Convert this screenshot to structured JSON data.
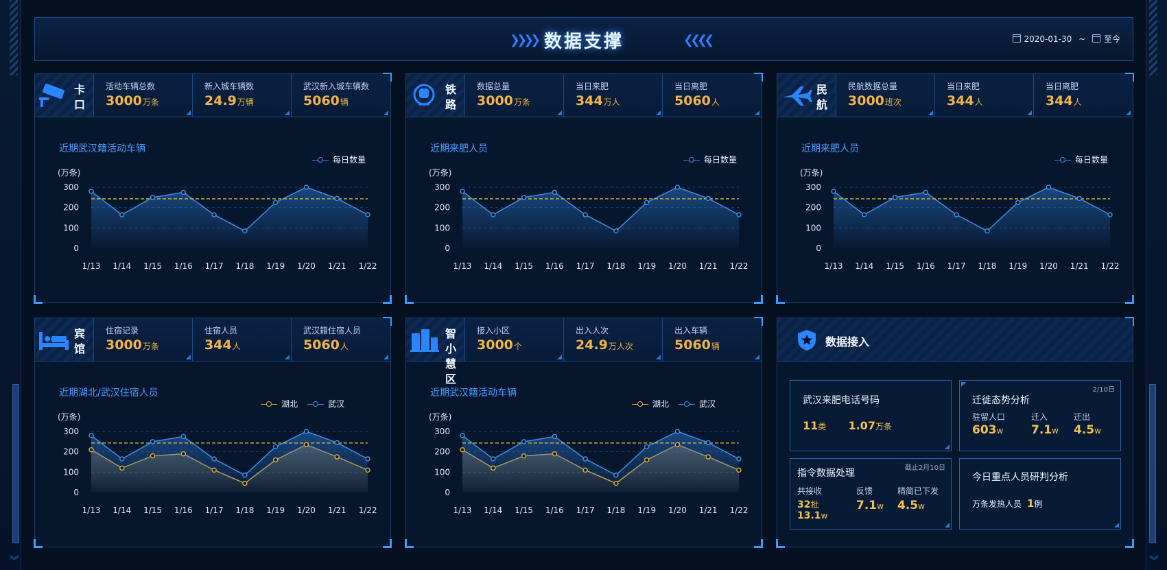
{
  "header": {
    "title": "数据支撑",
    "date_from": "2020-01-30",
    "date_sep": "~",
    "date_to": "至今"
  },
  "side": {
    "left_number": "",
    "right_number": ""
  },
  "panels": [
    {
      "icon": "camera-icon",
      "label": "卡口",
      "stats": [
        {
          "label": "活动车辆总数",
          "value": "3000",
          "unit": "万条"
        },
        {
          "label": "新入城车辆数",
          "value": "24.9",
          "unit": "万辆"
        },
        {
          "label": "武汉新入城车辆数",
          "value": "5060",
          "unit": "辆"
        }
      ],
      "chart_title": "近期武汉籍活动车辆"
    },
    {
      "icon": "train-icon",
      "label": "铁路",
      "stats": [
        {
          "label": "数据总量",
          "value": "3000",
          "unit": "万条"
        },
        {
          "label": "当日来肥",
          "value": "344",
          "unit": "万人"
        },
        {
          "label": "当日离肥",
          "value": "5060",
          "unit": "人"
        }
      ],
      "chart_title": "近期来肥人员"
    },
    {
      "icon": "airplane-icon",
      "label": "民航",
      "stats": [
        {
          "label": "民航数据总量",
          "value": "3000",
          "unit": "班次"
        },
        {
          "label": "当日来肥",
          "value": "344",
          "unit": "人"
        },
        {
          "label": "当日离肥",
          "value": "344",
          "unit": "人"
        }
      ],
      "chart_title": "近期来肥人员"
    },
    {
      "icon": "bed-icon",
      "label": "宾馆",
      "stats": [
        {
          "label": "住宿记录",
          "value": "3000",
          "unit": "万条"
        },
        {
          "label": "住宿人员",
          "value": "344",
          "unit": "人"
        },
        {
          "label": "武汉籍住宿人员",
          "value": "5060",
          "unit": "人"
        }
      ],
      "chart_title": "近期湖北/武汉住宿人员"
    },
    {
      "icon": "building-icon",
      "label": "智小慧区",
      "stats": [
        {
          "label": "接入小区",
          "value": "3000",
          "unit": "个"
        },
        {
          "label": "出入人次",
          "value": "24.9",
          "unit": "万人次"
        },
        {
          "label": "出入车辆",
          "value": "5060",
          "unit": "辆"
        }
      ],
      "chart_title": "近期武汉籍活动车辆"
    }
  ],
  "chart_data": [
    {
      "type": "area",
      "ylabel": "(万条)",
      "ylim": [
        0,
        300
      ],
      "yticks": [
        0,
        100,
        200,
        300
      ],
      "categories": [
        "1/13",
        "1/14",
        "1/15",
        "1/16",
        "1/17",
        "1/18",
        "1/19",
        "1/20",
        "1/21",
        "1/22"
      ],
      "series": [
        {
          "name": "每日数量",
          "color": "#3d8fe0",
          "values": [
            280,
            165,
            250,
            275,
            165,
            85,
            225,
            300,
            245,
            165
          ]
        }
      ],
      "reference_line": 243,
      "legend_position": "top-right",
      "grid": true
    },
    {
      "type": "area",
      "ylabel": "(万条)",
      "ylim": [
        0,
        300
      ],
      "yticks": [
        0,
        100,
        200,
        300
      ],
      "categories": [
        "1/13",
        "1/14",
        "1/15",
        "1/16",
        "1/17",
        "1/18",
        "1/19",
        "1/20",
        "1/21",
        "1/22"
      ],
      "series": [
        {
          "name": "每日数量",
          "color": "#3d8fe0",
          "values": [
            280,
            165,
            250,
            275,
            165,
            85,
            225,
            300,
            245,
            165
          ]
        }
      ],
      "reference_line": 243,
      "legend_position": "top-right",
      "grid": true
    },
    {
      "type": "area",
      "ylabel": "(万条)",
      "ylim": [
        0,
        300
      ],
      "yticks": [
        0,
        100,
        200,
        300
      ],
      "categories": [
        "1/13",
        "1/14",
        "1/15",
        "1/16",
        "1/17",
        "1/18",
        "1/19",
        "1/20",
        "1/21",
        "1/22"
      ],
      "series": [
        {
          "name": "每日数量",
          "color": "#3d8fe0",
          "values": [
            280,
            165,
            250,
            275,
            165,
            85,
            225,
            300,
            245,
            165
          ]
        }
      ],
      "reference_line": 243,
      "legend_position": "top-right",
      "grid": true
    },
    {
      "type": "area",
      "ylabel": "(万条)",
      "ylim": [
        0,
        300
      ],
      "yticks": [
        0,
        100,
        200,
        300
      ],
      "categories": [
        "1/13",
        "1/14",
        "1/15",
        "1/16",
        "1/17",
        "1/18",
        "1/19",
        "1/20",
        "1/21",
        "1/22"
      ],
      "series": [
        {
          "name": "湖北",
          "color": "#e0a93a",
          "values": [
            210,
            120,
            180,
            190,
            110,
            45,
            160,
            235,
            175,
            110
          ]
        },
        {
          "name": "武汉",
          "color": "#3d8fe0",
          "values": [
            280,
            165,
            250,
            275,
            165,
            85,
            225,
            300,
            245,
            165
          ]
        }
      ],
      "reference_line": 243,
      "legend_position": "top-right",
      "grid": true
    },
    {
      "type": "area",
      "ylabel": "(万条)",
      "ylim": [
        0,
        300
      ],
      "yticks": [
        0,
        100,
        200,
        300
      ],
      "categories": [
        "1/13",
        "1/14",
        "1/15",
        "1/16",
        "1/17",
        "1/18",
        "1/19",
        "1/20",
        "1/21",
        "1/22"
      ],
      "series": [
        {
          "name": "湖北",
          "color": "#e0a93a",
          "values": [
            210,
            120,
            180,
            190,
            110,
            45,
            160,
            235,
            175,
            110
          ]
        },
        {
          "name": "武汉",
          "color": "#3d8fe0",
          "values": [
            280,
            165,
            250,
            275,
            165,
            85,
            225,
            300,
            245,
            165
          ]
        }
      ],
      "reference_line": 243,
      "legend_position": "top-right",
      "grid": true
    }
  ],
  "data_access": {
    "title": "数据接入",
    "boxes": {
      "phone": {
        "title": "武汉来肥电话号码",
        "count": "11",
        "count_unit": "类",
        "records": "1.07",
        "records_unit": "万条"
      },
      "migration": {
        "title": "迁徙态势分析",
        "note": "2/10日",
        "items": [
          {
            "label": "驻留人口",
            "value": "603",
            "unit": "w"
          },
          {
            "label": "迁入",
            "value": "7.1",
            "unit": "w"
          },
          {
            "label": "迁出",
            "value": "4.5",
            "unit": "w"
          }
        ]
      },
      "commands": {
        "title": "指令数据处理",
        "note": "截止2月10日",
        "items": [
          {
            "label": "共接收",
            "value": "32",
            "unit": "批",
            "value2": "13.1",
            "unit2": "w"
          },
          {
            "label": "反馈",
            "value": "7.1",
            "unit": "w"
          },
          {
            "label": "精简已下发",
            "value": "4.5",
            "unit": "w"
          }
        ]
      },
      "analysis": {
        "title": "今日重点人员研判分析",
        "line_label": "万条发热人员",
        "line_value": "1",
        "line_unit": "例"
      }
    }
  }
}
